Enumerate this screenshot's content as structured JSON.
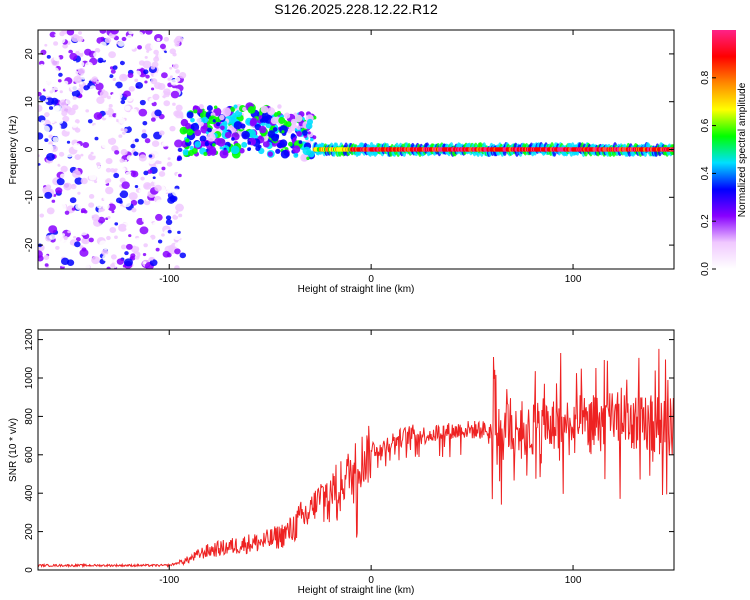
{
  "title": "S126.2025.228.12.22.R12",
  "chart_data": [
    {
      "type": "heatmap",
      "name": "spectrogram",
      "xlabel": "Height of straight line (km)",
      "ylabel": "Frequency (Hz)",
      "xlim": [
        -165,
        150
      ],
      "ylim": [
        -25,
        25
      ],
      "xticks": [
        -100,
        0,
        100
      ],
      "yticks": [
        -20,
        -10,
        0,
        10,
        20
      ],
      "xtick_labels": [
        "-100",
        "0",
        "100"
      ],
      "ytick_labels": [
        "-20",
        "-10",
        "0",
        "10",
        "20"
      ],
      "colorbar": {
        "label": "Normalized spectral amplitude",
        "range": [
          0,
          1
        ],
        "ticks": [
          0,
          0.2,
          0.4,
          0.6,
          0.8
        ],
        "tick_labels": [
          "0.0",
          "0.2",
          "0.4",
          "0.6",
          "0.8"
        ],
        "colors": [
          "#ffffff",
          "#f0c8ff",
          "#8800ff",
          "#0000ff",
          "#00e0ff",
          "#00ff00",
          "#ffff00",
          "#ff8800",
          "#ff0000",
          "#ff2288"
        ]
      },
      "regions": [
        {
          "x_range": [
            -165,
            -93
          ],
          "description_level": "noise",
          "f_range": [
            -25,
            25
          ],
          "amplitude": 0.15
        },
        {
          "x_range": [
            -93,
            -28
          ],
          "description_level": "signal_scatter",
          "f_center": 4,
          "amplitude": 0.4
        },
        {
          "x_range": [
            -28,
            150
          ],
          "description_level": "carrier",
          "f_center": 0,
          "amplitude": 0.95
        }
      ]
    },
    {
      "type": "line",
      "name": "snr",
      "xlabel": "Height of straight line (km)",
      "ylabel": "SNR (10 * v/v)",
      "xlim": [
        -165,
        150
      ],
      "ylim": [
        0,
        1250
      ],
      "xticks": [
        -100,
        0,
        100
      ],
      "yticks": [
        0,
        200,
        400,
        600,
        800,
        1000,
        1200
      ],
      "xtick_labels": [
        "-100",
        "0",
        "100"
      ],
      "ytick_labels": [
        "0",
        "200",
        "400",
        "600",
        "800",
        "1000",
        "1200"
      ],
      "color": "#ee2222",
      "series": [
        {
          "name": "SNR",
          "x": [
            -165,
            -150,
            -130,
            -110,
            -100,
            -95,
            -90,
            -85,
            -80,
            -75,
            -70,
            -65,
            -60,
            -55,
            -50,
            -45,
            -40,
            -35,
            -30,
            -25,
            -20,
            -15,
            -10,
            -5,
            0,
            5,
            10,
            15,
            20,
            25,
            30,
            35,
            40,
            45,
            50,
            55,
            60,
            65,
            70,
            75,
            80,
            85,
            90,
            95,
            100,
            105,
            110,
            115,
            120,
            125,
            130,
            135,
            140,
            145,
            150
          ],
          "y": [
            25,
            25,
            25,
            25,
            25,
            40,
            60,
            90,
            110,
            120,
            130,
            140,
            150,
            155,
            170,
            190,
            220,
            280,
            330,
            400,
            440,
            480,
            540,
            600,
            640,
            650,
            680,
            700,
            720,
            710,
            720,
            730,
            730,
            740,
            740,
            740,
            740,
            750,
            750,
            760,
            770,
            770,
            780,
            780,
            780,
            790,
            790,
            800,
            810,
            800,
            800,
            800,
            790,
            780,
            780
          ]
        }
      ]
    }
  ]
}
